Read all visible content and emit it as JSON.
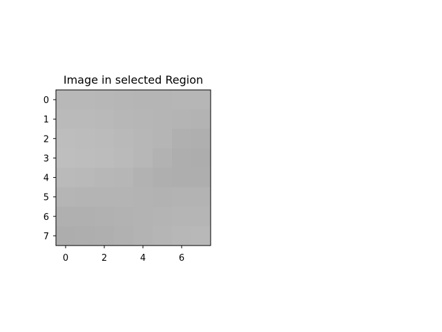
{
  "chart_data": {
    "type": "heatmap",
    "title": "Image in selected Region",
    "xlabel": "",
    "ylabel": "",
    "rows": 8,
    "cols": 8,
    "x_ticks": [
      0,
      2,
      4,
      6
    ],
    "y_ticks": [
      0,
      1,
      2,
      3,
      4,
      5,
      6,
      7
    ],
    "colormap": "gray",
    "values": [
      [
        184,
        184,
        183,
        182,
        181,
        181,
        182,
        182
      ],
      [
        186,
        186,
        185,
        183,
        182,
        181,
        180,
        179
      ],
      [
        189,
        188,
        187,
        185,
        183,
        181,
        176,
        175
      ],
      [
        190,
        189,
        188,
        186,
        183,
        178,
        174,
        173
      ],
      [
        186,
        185,
        183,
        182,
        178,
        175,
        174,
        174
      ],
      [
        181,
        180,
        180,
        180,
        179,
        178,
        179,
        179
      ],
      [
        176,
        176,
        177,
        178,
        179,
        180,
        181,
        181
      ],
      [
        173,
        174,
        175,
        177,
        179,
        181,
        183,
        184
      ]
    ]
  }
}
